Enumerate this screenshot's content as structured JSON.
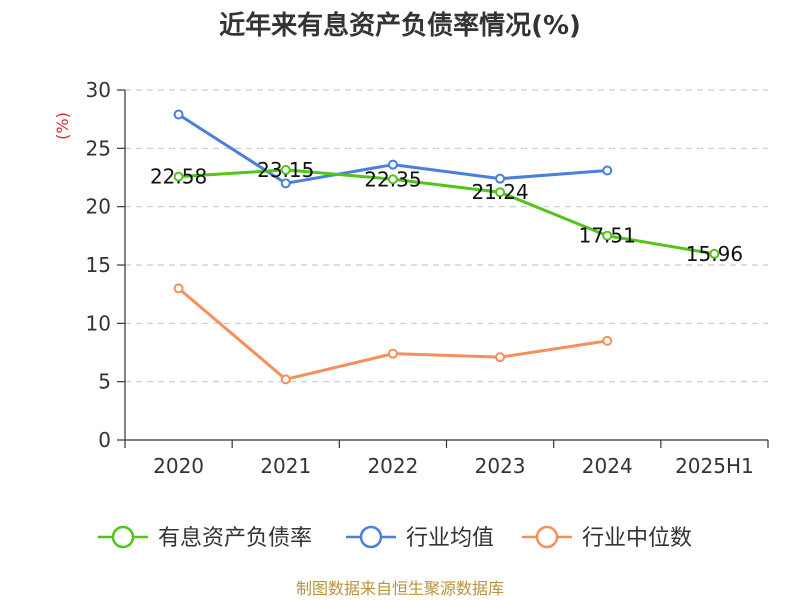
{
  "chart_data": {
    "type": "line",
    "title": "近年来有息资产负债率情况(%)",
    "ylabel": "(%)",
    "categories": [
      "2020",
      "2021",
      "2022",
      "2023",
      "2024",
      "2025H1"
    ],
    "ylim": [
      0,
      30
    ],
    "yticks": [
      "0",
      "5",
      "10",
      "15",
      "20",
      "25",
      "30"
    ],
    "grid": true,
    "legend_position": "bottom",
    "series": [
      {
        "name": "有息资产负债率",
        "color": "#52c41a",
        "values": [
          22.58,
          23.15,
          22.35,
          21.24,
          17.51,
          15.96
        ],
        "labels": [
          "22.58",
          "23.15",
          "22.35",
          "21.24",
          "17.51",
          "15.96"
        ]
      },
      {
        "name": "行业均值",
        "color": "#4a7fdc",
        "values": [
          27.9,
          22.0,
          23.6,
          22.4,
          23.1,
          null
        ]
      },
      {
        "name": "行业中位数",
        "color": "#f5905a",
        "values": [
          13.0,
          5.2,
          7.4,
          7.1,
          8.5,
          null
        ]
      }
    ],
    "source": "制图数据来自恒生聚源数据库"
  }
}
